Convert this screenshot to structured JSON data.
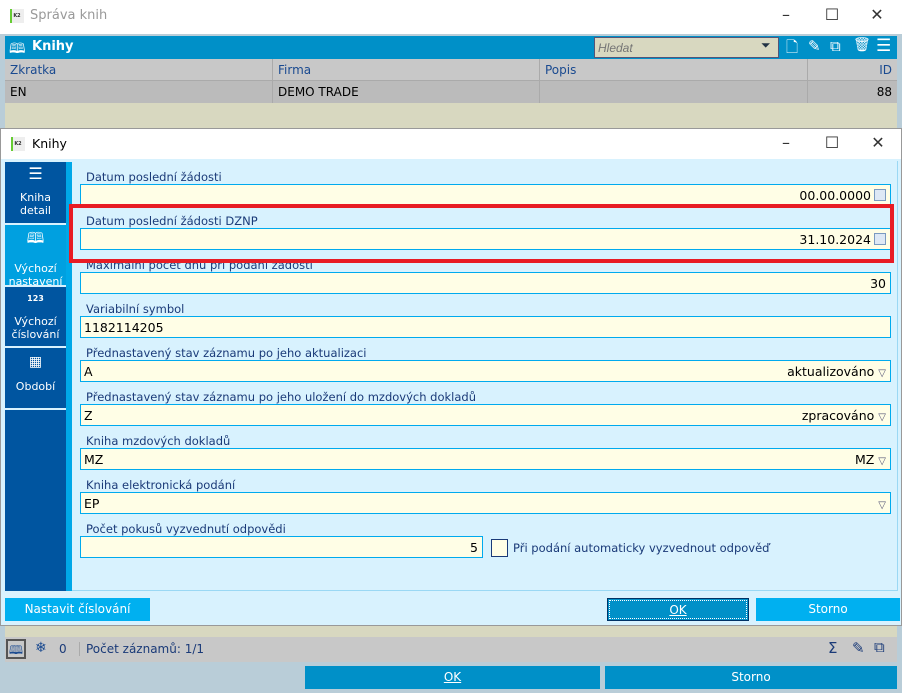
{
  "main_window": {
    "title": "Správa knih",
    "header_title": "Knihy",
    "search_placeholder": "Hledat",
    "columns": [
      "Zkratka",
      "Firma",
      "Popis",
      "ID"
    ],
    "rows": [
      [
        "EN",
        "DEMO TRADE",
        "",
        "88"
      ]
    ],
    "status": {
      "count": "0",
      "records": "Počet záznamů: 1/1"
    },
    "ok": "OK",
    "cancel": "Storno"
  },
  "dialog": {
    "title": "Knihy",
    "sidebar": [
      {
        "label1": "Kniha",
        "label2": "detail",
        "icon": "list-icon"
      },
      {
        "label1": "Výchozí",
        "label2": "nastavení",
        "icon": "book-icon",
        "active": true
      },
      {
        "label1": "Výchozí",
        "label2": "číslování",
        "icon": "123"
      },
      {
        "label1": "Období",
        "label2": "",
        "icon": "calendar-icon"
      }
    ],
    "fields": [
      {
        "label": "Datum poslední žádosti",
        "value": "",
        "right": "00.00.0000"
      },
      {
        "label": "Datum poslední žádosti DZNP",
        "value": "",
        "right": "31.10.2024"
      },
      {
        "label": "Maximální počet dnů při podání žádosti",
        "value": "",
        "right": "30"
      },
      {
        "label": "Variabilní symbol",
        "value": "1182114205",
        "right": ""
      },
      {
        "label": "Přednastavený stav záznamu po jeho aktualizaci",
        "value": "A",
        "right": "aktualizováno"
      },
      {
        "label": "Přednastavený stav záznamu po jeho uložení do mzdových dokladů",
        "value": "Z",
        "right": "zpracováno"
      },
      {
        "label": "Kniha mzdových dokladů",
        "value": "MZ",
        "right": "MZ"
      },
      {
        "label": "Kniha elektronická podání",
        "value": "EP",
        "right": ""
      },
      {
        "label": "Počet pokusů vyzvednutí odpovědi",
        "value": "",
        "right": "5"
      }
    ],
    "checkbox_label": "Při podání automaticky vyzvednout odpověď",
    "checkbox_checked": false,
    "set_numbering": "Nastavit číslování",
    "ok": "OK",
    "cancel": "Storno"
  },
  "colors": {
    "accent": "#0090c8",
    "sidebar": "#0055a0",
    "highlight": "#e81c24"
  }
}
